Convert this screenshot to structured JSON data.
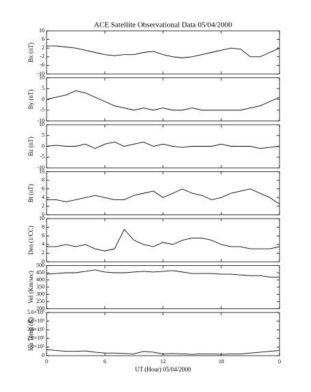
{
  "chart_data": [
    {
      "type": "line",
      "title": "ACE Satellite Observational Data   05/04/2000",
      "ylabel": "Bx (nT)",
      "color": "#000000",
      "x": [
        0,
        1,
        2,
        3,
        4,
        5,
        6,
        7,
        8,
        9,
        10,
        11,
        12,
        13,
        14,
        15,
        16,
        17,
        18,
        19,
        20,
        21,
        22,
        23,
        24
      ],
      "values": [
        3,
        3,
        2.5,
        2,
        1,
        0,
        -1,
        -1.5,
        -1,
        -1,
        0,
        0.5,
        -1,
        -2,
        -2.5,
        -2,
        -1,
        0,
        1,
        2,
        1.5,
        -2,
        -2,
        0,
        2
      ],
      "xlim": [
        0,
        24
      ],
      "ylim": [
        -10,
        10
      ],
      "yticks": [
        -10,
        -6,
        -2,
        2,
        6,
        10
      ]
    },
    {
      "type": "line",
      "ylabel": "By (nT)",
      "color": "#000000",
      "x": [
        0,
        1,
        2,
        3,
        4,
        5,
        6,
        7,
        8,
        9,
        10,
        11,
        12,
        13,
        14,
        15,
        16,
        17,
        18,
        19,
        20,
        21,
        22,
        23,
        24
      ],
      "values": [
        0,
        1,
        2,
        4,
        3,
        1,
        -1,
        -3,
        -4,
        -5,
        -4,
        -5,
        -4,
        -5,
        -5,
        -4,
        -5,
        -5,
        -5,
        -5,
        -5,
        -4,
        -3,
        -1,
        1
      ],
      "xlim": [
        0,
        24
      ],
      "ylim": [
        -10,
        10
      ],
      "yticks": [
        -10,
        -5,
        0,
        5,
        10
      ]
    },
    {
      "type": "line",
      "ylabel": "Bz (nT)",
      "color": "#000000",
      "x": [
        0,
        1,
        2,
        3,
        4,
        5,
        6,
        7,
        8,
        9,
        10,
        11,
        12,
        13,
        14,
        15,
        16,
        17,
        18,
        19,
        20,
        21,
        22,
        23,
        24
      ],
      "values": [
        0,
        0.5,
        0,
        0,
        1,
        -1,
        1,
        2,
        0,
        1,
        2,
        0,
        1,
        0,
        -0.5,
        0,
        0,
        0,
        1,
        0,
        0,
        0,
        -1,
        -0.5,
        0
      ],
      "xlim": [
        0,
        24
      ],
      "ylim": [
        -10,
        10
      ],
      "yticks": [
        -10,
        -5,
        0,
        5,
        10
      ]
    },
    {
      "type": "line",
      "ylabel": "Bt (nT)",
      "color": "#000000",
      "x": [
        0,
        1,
        2,
        3,
        4,
        5,
        6,
        7,
        8,
        9,
        10,
        11,
        12,
        13,
        14,
        15,
        16,
        17,
        18,
        19,
        20,
        21,
        22,
        23,
        24
      ],
      "values": [
        3.5,
        3.5,
        3,
        3.5,
        4,
        4.5,
        4,
        3.5,
        3.5,
        4.5,
        5,
        5.5,
        4,
        5,
        6,
        5,
        4.5,
        3.5,
        4,
        5,
        5.5,
        6,
        5,
        4,
        2.5
      ],
      "xlim": [
        0,
        24
      ],
      "ylim": [
        0,
        10
      ],
      "yticks": [
        0,
        2,
        4,
        6,
        8,
        10
      ]
    },
    {
      "type": "line",
      "ylabel": "Den (1/CC)",
      "color": "#000000",
      "x": [
        0,
        1,
        2,
        3,
        4,
        5,
        6,
        7,
        8,
        9,
        10,
        11,
        12,
        13,
        14,
        15,
        16,
        17,
        18,
        19,
        20,
        21,
        22,
        23,
        24
      ],
      "values": [
        3.5,
        3.5,
        4,
        3.5,
        4,
        3,
        2.5,
        3,
        7.5,
        5,
        4,
        3.5,
        4.5,
        4,
        5,
        5.5,
        5.5,
        5,
        4,
        3.5,
        3.5,
        3,
        3,
        3,
        3.5
      ],
      "xlim": [
        0,
        24
      ],
      "ylim": [
        0,
        10
      ],
      "yticks": [
        0,
        2,
        4,
        6,
        8,
        10
      ]
    },
    {
      "type": "line",
      "ylabel": "Vel (Km/sec)",
      "color": "#000000",
      "x": [
        0,
        1,
        2,
        3,
        4,
        5,
        6,
        7,
        8,
        9,
        10,
        11,
        12,
        13,
        14,
        15,
        16,
        17,
        18,
        19,
        20,
        21,
        22,
        23,
        24
      ],
      "values": [
        440,
        445,
        450,
        450,
        460,
        470,
        455,
        450,
        450,
        455,
        460,
        455,
        460,
        465,
        455,
        445,
        445,
        445,
        440,
        440,
        435,
        430,
        430,
        420,
        420
      ],
      "xlim": [
        0,
        24
      ],
      "ylim": [
        200,
        500
      ],
      "yticks": [
        200,
        250,
        300,
        350,
        400,
        450,
        500
      ]
    },
    {
      "type": "line",
      "ylabel": "Ion Temp (K)",
      "xlabel": "UT (Hour)  05/04/2000",
      "color": "#000000",
      "x": [
        0,
        1,
        2,
        3,
        4,
        5,
        6,
        7,
        8,
        9,
        10,
        11,
        12,
        13,
        14,
        15,
        16,
        17,
        18,
        19,
        20,
        21,
        22,
        23,
        24
      ],
      "values": [
        70000,
        60000,
        50000,
        50000,
        55000,
        40000,
        30000,
        30000,
        25000,
        20000,
        50000,
        40000,
        20000,
        25000,
        20000,
        15000,
        20000,
        20000,
        15000,
        20000,
        20000,
        30000,
        40000,
        50000,
        60000
      ],
      "xlim": [
        0,
        24
      ],
      "ylim": [
        0,
        500000
      ],
      "yticks": [
        0,
        {
          "value": 100000,
          "label": "1.0×10⁵"
        },
        {
          "value": 200000,
          "label": "2.0×10⁵"
        },
        {
          "value": 300000,
          "label": "3.0×10⁵"
        },
        {
          "value": 400000,
          "label": "4.0×10⁵"
        },
        {
          "value": 500000,
          "label": "5.0×10⁵"
        }
      ],
      "xticks": [
        0,
        6,
        12,
        18,
        {
          "value": 24,
          "label": "0"
        }
      ]
    }
  ]
}
